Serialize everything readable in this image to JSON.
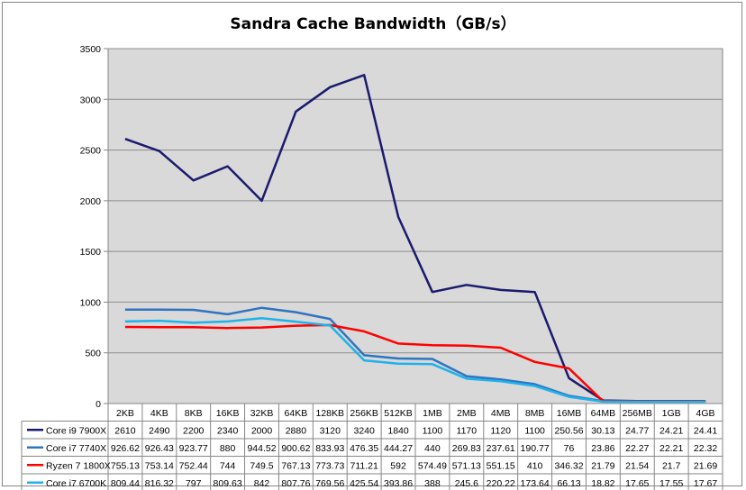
{
  "chart_data": {
    "type": "line",
    "title": "Sandra Cache Bandwidth（GB/s）",
    "xlabel": "",
    "ylabel": "",
    "ylim": [
      0,
      3500
    ],
    "yticks": [
      0,
      500,
      1000,
      1500,
      2000,
      2500,
      3000,
      3500
    ],
    "grid": true,
    "legend": "table-below",
    "categories": [
      "2KB",
      "4KB",
      "8KB",
      "16KB",
      "32KB",
      "64KB",
      "128KB",
      "256KB",
      "512KB",
      "1MB",
      "2MB",
      "4MB",
      "8MB",
      "16MB",
      "64MB",
      "256MB",
      "1GB",
      "4GB"
    ],
    "series": [
      {
        "name": "Core i9 7900X",
        "color": "#1a1a6e",
        "values": [
          2610,
          2490,
          2200,
          2340,
          2000,
          2880,
          3120,
          3240,
          1840,
          1100,
          1170,
          1120,
          1100,
          250.56,
          30.13,
          24.77,
          24.21,
          24.41
        ]
      },
      {
        "name": "Core i7 7740X",
        "color": "#2f74c0",
        "values": [
          926.62,
          926.43,
          923.77,
          880,
          944.52,
          900.62,
          833.93,
          476.35,
          444.27,
          440,
          269.83,
          237.61,
          190.77,
          76,
          23.86,
          22.27,
          22.21,
          22.32
        ]
      },
      {
        "name": "Ryzen 7 1800X",
        "color": "#ff0000",
        "values": [
          755.13,
          753.14,
          752.44,
          744,
          749.5,
          767.13,
          773.73,
          711.21,
          592,
          574.49,
          571.13,
          551.15,
          410,
          346.32,
          21.79,
          21.54,
          21.7,
          21.69
        ]
      },
      {
        "name": "Core i7 6700K",
        "color": "#1fb2ea",
        "values": [
          809.44,
          816.32,
          797,
          809.63,
          842,
          807.76,
          769.56,
          425.54,
          393.86,
          388,
          245.6,
          220.22,
          173.64,
          66.13,
          18.82,
          17.65,
          17.55,
          17.67
        ]
      }
    ]
  }
}
